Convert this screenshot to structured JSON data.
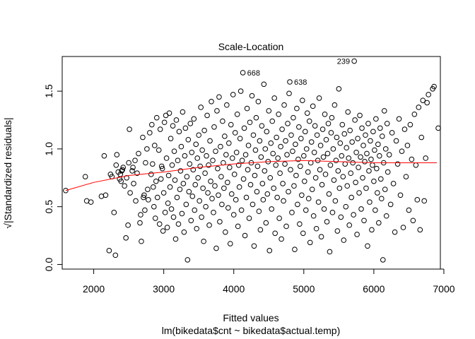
{
  "chart_data": {
    "type": "scatter",
    "title": "Scale-Location",
    "xlabel": "Fitted values",
    "sublabel": "lm(bikedata$cnt ~ bikedata$actual.temp)",
    "ylabel": "√|Standardized residuals|",
    "xlim": [
      1550,
      6950
    ],
    "ylim": [
      -0.04,
      1.8
    ],
    "xticks": [
      2000,
      3000,
      4000,
      5000,
      6000,
      7000
    ],
    "xtick_labels": [
      "2000",
      "3000",
      "4000",
      "5000",
      "6000",
      "7000"
    ],
    "yticks": [
      0.0,
      0.5,
      1.0,
      1.5
    ],
    "ytick_labels": [
      "0.0",
      "0.5",
      "1.0",
      "1.5"
    ],
    "grid": false,
    "legend": "none",
    "point_style": "open circle",
    "point_color": "#000000",
    "smoother_color": "#ff0000",
    "smoother": {
      "x": [
        1600,
        2000,
        2500,
        3000,
        3500,
        4000,
        4500,
        5000,
        5500,
        6000,
        6500,
        6900
      ],
      "y": [
        0.64,
        0.71,
        0.77,
        0.8,
        0.84,
        0.87,
        0.89,
        0.9,
        0.89,
        0.88,
        0.88,
        0.88
      ]
    },
    "labeled_points": [
      {
        "label": "239",
        "x": 5720,
        "y": 1.76
      },
      {
        "label": "668",
        "x": 4130,
        "y": 1.66
      },
      {
        "label": "638",
        "x": 4800,
        "y": 1.58
      }
    ],
    "points": [
      [
        1600,
        0.64
      ],
      [
        1880,
        0.76
      ],
      [
        1900,
        0.55
      ],
      [
        1960,
        0.54
      ],
      [
        2110,
        0.59
      ],
      [
        2150,
        0.94
      ],
      [
        2170,
        0.6
      ],
      [
        2220,
        0.12
      ],
      [
        2240,
        0.78
      ],
      [
        2260,
        0.76
      ],
      [
        2290,
        0.45
      ],
      [
        2310,
        0.08
      ],
      [
        2320,
        0.86
      ],
      [
        2330,
        0.95
      ],
      [
        2350,
        0.8
      ],
      [
        2370,
        0.74
      ],
      [
        2380,
        0.78
      ],
      [
        2390,
        0.72
      ],
      [
        2400,
        0.81
      ],
      [
        2410,
        0.82
      ],
      [
        2420,
        0.84
      ],
      [
        2440,
        0.68
      ],
      [
        2460,
        0.23
      ],
      [
        2470,
        0.75
      ],
      [
        2490,
        0.34
      ],
      [
        2500,
        0.88
      ],
      [
        2510,
        1.17
      ],
      [
        2520,
        0.62
      ],
      [
        2550,
        0.81
      ],
      [
        2560,
        0.84
      ],
      [
        2570,
        0.7
      ],
      [
        2590,
        0.9
      ],
      [
        2600,
        0.55
      ],
      [
        2620,
        0.79
      ],
      [
        2640,
        0.96
      ],
      [
        2660,
        0.36
      ],
      [
        2670,
        0.43
      ],
      [
        2680,
        0.2
      ],
      [
        2700,
        1.1
      ],
      [
        2710,
        0.58
      ],
      [
        2720,
        0.6
      ],
      [
        2730,
        0.47
      ],
      [
        2740,
        0.88
      ],
      [
        2760,
        1.0
      ],
      [
        2770,
        0.65
      ],
      [
        2780,
        0.56
      ],
      [
        2800,
        1.14
      ],
      [
        2820,
        0.78
      ],
      [
        2830,
        1.21
      ],
      [
        2840,
        0.87
      ],
      [
        2850,
        0.67
      ],
      [
        2860,
        0.5
      ],
      [
        2870,
        1.03
      ],
      [
        2880,
        0.4
      ],
      [
        2890,
        0.72
      ],
      [
        2900,
        1.27
      ],
      [
        2910,
        0.58
      ],
      [
        2930,
        0.99
      ],
      [
        2940,
        0.35
      ],
      [
        2950,
        1.17
      ],
      [
        2960,
        0.74
      ],
      [
        2970,
        0.85
      ],
      [
        2980,
        0.83
      ],
      [
        2990,
        0.29
      ],
      [
        3000,
        0.62
      ],
      [
        3010,
        1.23
      ],
      [
        3020,
        0.45
      ],
      [
        3030,
        1.29
      ],
      [
        3040,
        0.92
      ],
      [
        3050,
        0.32
      ],
      [
        3060,
        0.53
      ],
      [
        3070,
        0.77
      ],
      [
        3080,
        1.31
      ],
      [
        3090,
        0.67
      ],
      [
        3100,
        1.09
      ],
      [
        3110,
        0.48
      ],
      [
        3120,
        0.86
      ],
      [
        3130,
        1.2
      ],
      [
        3140,
        0.41
      ],
      [
        3150,
        0.98
      ],
      [
        3160,
        0.73
      ],
      [
        3170,
        0.22
      ],
      [
        3180,
        1.25
      ],
      [
        3190,
        0.58
      ],
      [
        3200,
        0.9
      ],
      [
        3210,
        0.35
      ],
      [
        3220,
        1.15
      ],
      [
        3230,
        0.65
      ],
      [
        3240,
        0.81
      ],
      [
        3250,
        1.02
      ],
      [
        3260,
        0.44
      ],
      [
        3270,
        1.32
      ],
      [
        3280,
        0.7
      ],
      [
        3290,
        0.28
      ],
      [
        3300,
        0.94
      ],
      [
        3310,
        1.18
      ],
      [
        3320,
        0.52
      ],
      [
        3330,
        0.76
      ],
      [
        3340,
        0.04
      ],
      [
        3350,
        1.08
      ],
      [
        3360,
        0.63
      ],
      [
        3370,
        0.87
      ],
      [
        3380,
        1.22
      ],
      [
        3390,
        0.38
      ],
      [
        3400,
        0.97
      ],
      [
        3410,
        0.59
      ],
      [
        3420,
        0.82
      ],
      [
        3430,
        1.26
      ],
      [
        3440,
        0.47
      ],
      [
        3450,
        0.69
      ],
      [
        3460,
        1.04
      ],
      [
        3470,
        0.31
      ],
      [
        3480,
        0.92
      ],
      [
        3490,
        0.75
      ],
      [
        3500,
        1.12
      ],
      [
        3510,
        0.55
      ],
      [
        3520,
        0.85
      ],
      [
        3530,
        1.36
      ],
      [
        3540,
        0.41
      ],
      [
        3550,
        0.99
      ],
      [
        3560,
        0.66
      ],
      [
        3570,
        0.2
      ],
      [
        3580,
        1.16
      ],
      [
        3590,
        0.79
      ],
      [
        3600,
        0.5
      ],
      [
        3610,
        0.94
      ],
      [
        3620,
        1.29
      ],
      [
        3630,
        0.62
      ],
      [
        3640,
        0.86
      ],
      [
        3650,
        0.34
      ],
      [
        3660,
        1.07
      ],
      [
        3670,
        0.72
      ],
      [
        3680,
        1.41
      ],
      [
        3690,
        0.57
      ],
      [
        3700,
        0.9
      ],
      [
        3710,
        0.45
      ],
      [
        3720,
        1.19
      ],
      [
        3730,
        0.68
      ],
      [
        3740,
        0.98
      ],
      [
        3750,
        0.14
      ],
      [
        3760,
        1.33
      ],
      [
        3770,
        0.83
      ],
      [
        3780,
        0.6
      ],
      [
        3790,
        1.45
      ],
      [
        3800,
        0.37
      ],
      [
        3810,
        1.02
      ],
      [
        3820,
        0.76
      ],
      [
        3830,
        0.52
      ],
      [
        3840,
        1.24
      ],
      [
        3850,
        0.88
      ],
      [
        3860,
        0.66
      ],
      [
        3870,
        1.11
      ],
      [
        3880,
        0.28
      ],
      [
        3890,
        0.95
      ],
      [
        3900,
        1.38
      ],
      [
        3910,
        0.71
      ],
      [
        3920,
        0.49
      ],
      [
        3930,
        1.05
      ],
      [
        3940,
        0.84
      ],
      [
        3950,
        0.18
      ],
      [
        3960,
        1.21
      ],
      [
        3970,
        0.61
      ],
      [
        3980,
        0.92
      ],
      [
        3990,
        1.47
      ],
      [
        4000,
        0.43
      ],
      [
        4010,
        0.78
      ],
      [
        4020,
        1.14
      ],
      [
        4030,
        0.56
      ],
      [
        4040,
        0.97
      ],
      [
        4050,
        1.3
      ],
      [
        4060,
        0.33
      ],
      [
        4070,
        0.86
      ],
      [
        4080,
        0.67
      ],
      [
        4090,
        1.09
      ],
      [
        4100,
        1.5
      ],
      [
        4110,
        0.47
      ],
      [
        4120,
        0.9
      ],
      [
        4130,
        1.66
      ],
      [
        4140,
        0.74
      ],
      [
        4150,
        1.18
      ],
      [
        4160,
        0.25
      ],
      [
        4170,
        0.95
      ],
      [
        4180,
        0.58
      ],
      [
        4190,
        1.35
      ],
      [
        4200,
        0.82
      ],
      [
        4210,
        1.03
      ],
      [
        4220,
        0.4
      ],
      [
        4230,
        1.23
      ],
      [
        4240,
        0.69
      ],
      [
        4250,
        0.88
      ],
      [
        4260,
        1.46
      ],
      [
        4270,
        0.52
      ],
      [
        4280,
        1.12
      ],
      [
        4290,
        0.16
      ],
      [
        4300,
        0.77
      ],
      [
        4310,
        0.99
      ],
      [
        4320,
        1.27
      ],
      [
        4330,
        0.63
      ],
      [
        4340,
        0.85
      ],
      [
        4350,
        1.41
      ],
      [
        4360,
        0.46
      ],
      [
        4370,
        1.07
      ],
      [
        4380,
        0.3
      ],
      [
        4390,
        0.93
      ],
      [
        4400,
        1.2
      ],
      [
        4410,
        0.7
      ],
      [
        4420,
        0.56
      ],
      [
        4430,
        1.56
      ],
      [
        4440,
        0.81
      ],
      [
        4450,
        1.0
      ],
      [
        4460,
        0.36
      ],
      [
        4470,
        1.15
      ],
      [
        4480,
        0.61
      ],
      [
        4490,
        0.89
      ],
      [
        4500,
        1.33
      ],
      [
        4510,
        0.12
      ],
      [
        4520,
        0.75
      ],
      [
        4530,
        1.05
      ],
      [
        4540,
        0.48
      ],
      [
        4550,
        1.24
      ],
      [
        4560,
        0.96
      ],
      [
        4570,
        0.66
      ],
      [
        4580,
        1.44
      ],
      [
        4590,
        0.27
      ],
      [
        4600,
        0.86
      ],
      [
        4610,
        1.1
      ],
      [
        4620,
        0.58
      ],
      [
        4630,
        0.92
      ],
      [
        4640,
        1.3
      ],
      [
        4650,
        0.4
      ],
      [
        4660,
        0.79
      ],
      [
        4670,
        1.02
      ],
      [
        4680,
        0.22
      ],
      [
        4690,
        1.17
      ],
      [
        4700,
        0.7
      ],
      [
        4710,
        0.55
      ],
      [
        4720,
        1.38
      ],
      [
        4730,
        0.87
      ],
      [
        4740,
        1.07
      ],
      [
        4750,
        0.33
      ],
      [
        4760,
        0.95
      ],
      [
        4770,
        1.22
      ],
      [
        4780,
        0.63
      ],
      [
        4790,
        1.48
      ],
      [
        4800,
        1.58
      ],
      [
        4810,
        0.82
      ],
      [
        4820,
        1.12
      ],
      [
        4830,
        0.45
      ],
      [
        4840,
        0.98
      ],
      [
        4850,
        1.27
      ],
      [
        4860,
        0.68
      ],
      [
        4870,
        0.13
      ],
      [
        4880,
        1.04
      ],
      [
        4890,
        0.77
      ],
      [
        4900,
        1.35
      ],
      [
        4910,
        0.52
      ],
      [
        4920,
        0.91
      ],
      [
        4930,
        1.19
      ],
      [
        4940,
        0.35
      ],
      [
        4950,
        0.85
      ],
      [
        4960,
        1.09
      ],
      [
        4970,
        0.6
      ],
      [
        4980,
        1.42
      ],
      [
        4990,
        0.27
      ],
      [
        5000,
        0.94
      ],
      [
        5010,
        0.72
      ],
      [
        5020,
        1.15
      ],
      [
        5030,
        0.47
      ],
      [
        5040,
        1.0
      ],
      [
        5050,
        1.31
      ],
      [
        5060,
        0.8
      ],
      [
        5070,
        0.57
      ],
      [
        5080,
        1.24
      ],
      [
        5090,
        0.19
      ],
      [
        5100,
        0.88
      ],
      [
        5110,
        1.06
      ],
      [
        5120,
        0.65
      ],
      [
        5130,
        1.37
      ],
      [
        5140,
        0.42
      ],
      [
        5150,
        0.97
      ],
      [
        5160,
        1.2
      ],
      [
        5170,
        0.75
      ],
      [
        5180,
        0.31
      ],
      [
        5190,
        1.12
      ],
      [
        5200,
        0.9
      ],
      [
        5210,
        0.54
      ],
      [
        5220,
        1.44
      ],
      [
        5230,
        0.82
      ],
      [
        5240,
        1.03
      ],
      [
        5250,
        0.24
      ],
      [
        5260,
        0.69
      ],
      [
        5270,
        1.17
      ],
      [
        5280,
        0.93
      ],
      [
        5290,
        0.48
      ],
      [
        5300,
        1.3
      ],
      [
        5310,
        0.78
      ],
      [
        5320,
        1.08
      ],
      [
        5330,
        0.37
      ],
      [
        5340,
        0.96
      ],
      [
        5350,
        1.22
      ],
      [
        5360,
        0.61
      ],
      [
        5370,
        0.11
      ],
      [
        5380,
        0.86
      ],
      [
        5390,
        1.14
      ],
      [
        5400,
        1.27
      ],
      [
        5410,
        0.45
      ],
      [
        5420,
        1.0
      ],
      [
        5430,
        0.73
      ],
      [
        5440,
        1.38
      ],
      [
        5450,
        0.55
      ],
      [
        5460,
        0.9
      ],
      [
        5470,
        1.1
      ],
      [
        5480,
        0.29
      ],
      [
        5490,
        0.81
      ],
      [
        5500,
        1.52
      ],
      [
        5510,
        0.66
      ],
      [
        5520,
        1.05
      ],
      [
        5530,
        0.41
      ],
      [
        5540,
        0.94
      ],
      [
        5550,
        1.21
      ],
      [
        5560,
        0.76
      ],
      [
        5570,
        0.21
      ],
      [
        5580,
        1.13
      ],
      [
        5590,
        0.87
      ],
      [
        5600,
        0.5
      ],
      [
        5610,
        1.01
      ],
      [
        5620,
        0.68
      ],
      [
        5630,
        1.32
      ],
      [
        5640,
        0.92
      ],
      [
        5650,
        0.34
      ],
      [
        5660,
        1.16
      ],
      [
        5670,
        0.79
      ],
      [
        5680,
        0.58
      ],
      [
        5690,
        1.06
      ],
      [
        5700,
        0.88
      ],
      [
        5710,
        0.43
      ],
      [
        5720,
        1.76
      ],
      [
        5730,
        1.25
      ],
      [
        5740,
        0.71
      ],
      [
        5750,
        0.97
      ],
      [
        5760,
        0.26
      ],
      [
        5770,
        1.09
      ],
      [
        5780,
        0.84
      ],
      [
        5790,
        0.62
      ],
      [
        5800,
        1.29
      ],
      [
        5810,
        0.93
      ],
      [
        5820,
        0.48
      ],
      [
        5830,
        1.18
      ],
      [
        5840,
        0.75
      ],
      [
        5850,
        1.03
      ],
      [
        5860,
        0.38
      ],
      [
        5870,
        0.89
      ],
      [
        5880,
        1.12
      ],
      [
        5890,
        0.66
      ],
      [
        5900,
        0.96
      ],
      [
        5910,
        0.16
      ],
      [
        5920,
        1.22
      ],
      [
        5930,
        0.81
      ],
      [
        5940,
        0.54
      ],
      [
        5950,
        1.07
      ],
      [
        5960,
        0.91
      ],
      [
        5970,
        0.3
      ],
      [
        5980,
        0.86
      ],
      [
        5990,
        1.15
      ],
      [
        6000,
        0.72
      ],
      [
        6010,
        0.99
      ],
      [
        6020,
        0.47
      ],
      [
        6030,
        1.26
      ],
      [
        6040,
        0.83
      ],
      [
        6050,
        0.62
      ],
      [
        6060,
        1.04
      ],
      [
        6070,
        0.36
      ],
      [
        6080,
        0.94
      ],
      [
        6090,
        1.18
      ],
      [
        6100,
        0.74
      ],
      [
        6110,
        0.57
      ],
      [
        6120,
        1.11
      ],
      [
        6130,
        0.04
      ],
      [
        6140,
        0.88
      ],
      [
        6150,
        1.33
      ],
      [
        6160,
        0.65
      ],
      [
        6170,
        1.0
      ],
      [
        6180,
        0.42
      ],
      [
        6190,
        1.22
      ],
      [
        6200,
        0.8
      ],
      [
        6220,
        0.95
      ],
      [
        6240,
        0.52
      ],
      [
        6260,
        1.14
      ],
      [
        6280,
        0.7
      ],
      [
        6300,
        0.28
      ],
      [
        6320,
        1.07
      ],
      [
        6340,
        0.87
      ],
      [
        6360,
        1.26
      ],
      [
        6380,
        0.6
      ],
      [
        6400,
        0.98
      ],
      [
        6420,
        0.32
      ],
      [
        6440,
        1.17
      ],
      [
        6460,
        0.76
      ],
      [
        6480,
        1.03
      ],
      [
        6500,
        0.47
      ],
      [
        6520,
        1.21
      ],
      [
        6540,
        0.91
      ],
      [
        6560,
        0.38
      ],
      [
        6580,
        1.3
      ],
      [
        6600,
        0.86
      ],
      [
        6620,
        0.56
      ],
      [
        6640,
        1.36
      ],
      [
        6660,
        0.3
      ],
      [
        6680,
        1.1
      ],
      [
        6700,
        1.42
      ],
      [
        6720,
        0.55
      ],
      [
        6740,
        0.92
      ],
      [
        6760,
        1.4
      ],
      [
        6780,
        1.47
      ],
      [
        6840,
        1.52
      ],
      [
        6860,
        1.54
      ],
      [
        6920,
        1.18
      ]
    ]
  }
}
